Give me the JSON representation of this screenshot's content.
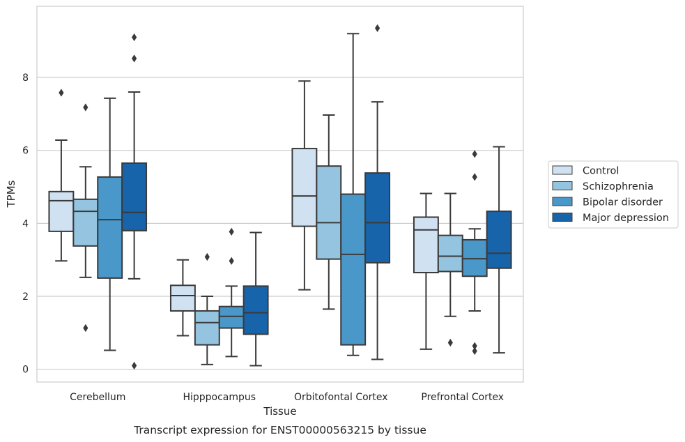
{
  "caption": "Transcript expression for ENST00000563215 by tissue",
  "chart_data": {
    "type": "box",
    "xlabel": "Tissue",
    "ylabel": "TPMs",
    "ylim": [
      -0.35,
      9.95
    ],
    "yticks": [
      0,
      2,
      4,
      6,
      8
    ],
    "grid": "horizontal",
    "legend_position": "right",
    "categories": [
      "Cerebellum",
      "Hipppocampus",
      "Orbitofontal Cortex",
      "Prefrontal Cortex"
    ],
    "series": [
      {
        "name": "Control",
        "color": "#d0e1f2",
        "boxes": [
          {
            "whisker_low": 2.97,
            "q1": 3.78,
            "median": 4.62,
            "q3": 4.87,
            "whisker_high": 6.28,
            "outliers": [
              7.58
            ]
          },
          {
            "whisker_low": 0.92,
            "q1": 1.6,
            "median": 2.02,
            "q3": 2.3,
            "whisker_high": 3.0,
            "outliers": []
          },
          {
            "whisker_low": 2.18,
            "q1": 3.92,
            "median": 4.75,
            "q3": 6.05,
            "whisker_high": 7.9,
            "outliers": []
          },
          {
            "whisker_low": 0.55,
            "q1": 2.65,
            "median": 3.82,
            "q3": 4.17,
            "whisker_high": 4.82,
            "outliers": []
          }
        ]
      },
      {
        "name": "Schizophrenia",
        "color": "#94c4df",
        "boxes": [
          {
            "whisker_low": 2.52,
            "q1": 3.38,
            "median": 4.33,
            "q3": 4.66,
            "whisker_high": 5.55,
            "outliers": [
              7.18,
              1.13
            ]
          },
          {
            "whisker_low": 0.13,
            "q1": 0.67,
            "median": 1.28,
            "q3": 1.6,
            "whisker_high": 2.0,
            "outliers": [
              3.08
            ]
          },
          {
            "whisker_low": 1.65,
            "q1": 3.02,
            "median": 4.02,
            "q3": 5.57,
            "whisker_high": 6.97,
            "outliers": []
          },
          {
            "whisker_low": 1.45,
            "q1": 2.68,
            "median": 3.1,
            "q3": 3.67,
            "whisker_high": 4.82,
            "outliers": [
              0.73
            ]
          }
        ]
      },
      {
        "name": "Bipolar disorder",
        "color": "#4a98c9",
        "boxes": [
          {
            "whisker_low": 0.52,
            "q1": 2.5,
            "median": 4.1,
            "q3": 5.27,
            "whisker_high": 7.43,
            "outliers": []
          },
          {
            "whisker_low": 0.35,
            "q1": 1.13,
            "median": 1.45,
            "q3": 1.72,
            "whisker_high": 2.28,
            "outliers": [
              3.77,
              2.97
            ]
          },
          {
            "whisker_low": 0.38,
            "q1": 0.67,
            "median": 3.15,
            "q3": 4.8,
            "whisker_high": 9.2,
            "outliers": []
          },
          {
            "whisker_low": 1.6,
            "q1": 2.55,
            "median": 3.03,
            "q3": 3.55,
            "whisker_high": 3.85,
            "outliers": [
              5.9,
              5.27,
              0.64,
              0.5
            ]
          }
        ]
      },
      {
        "name": "Major depression",
        "color": "#1764ab",
        "boxes": [
          {
            "whisker_low": 2.48,
            "q1": 3.8,
            "median": 4.3,
            "q3": 5.65,
            "whisker_high": 7.6,
            "outliers": [
              9.1,
              8.52,
              0.1
            ]
          },
          {
            "whisker_low": 0.1,
            "q1": 0.96,
            "median": 1.55,
            "q3": 2.28,
            "whisker_high": 3.75,
            "outliers": []
          },
          {
            "whisker_low": 0.27,
            "q1": 2.92,
            "median": 4.02,
            "q3": 5.38,
            "whisker_high": 7.33,
            "outliers": [
              9.35
            ]
          },
          {
            "whisker_low": 0.45,
            "q1": 2.77,
            "median": 3.18,
            "q3": 4.33,
            "whisker_high": 6.1,
            "outliers": []
          }
        ]
      }
    ]
  }
}
